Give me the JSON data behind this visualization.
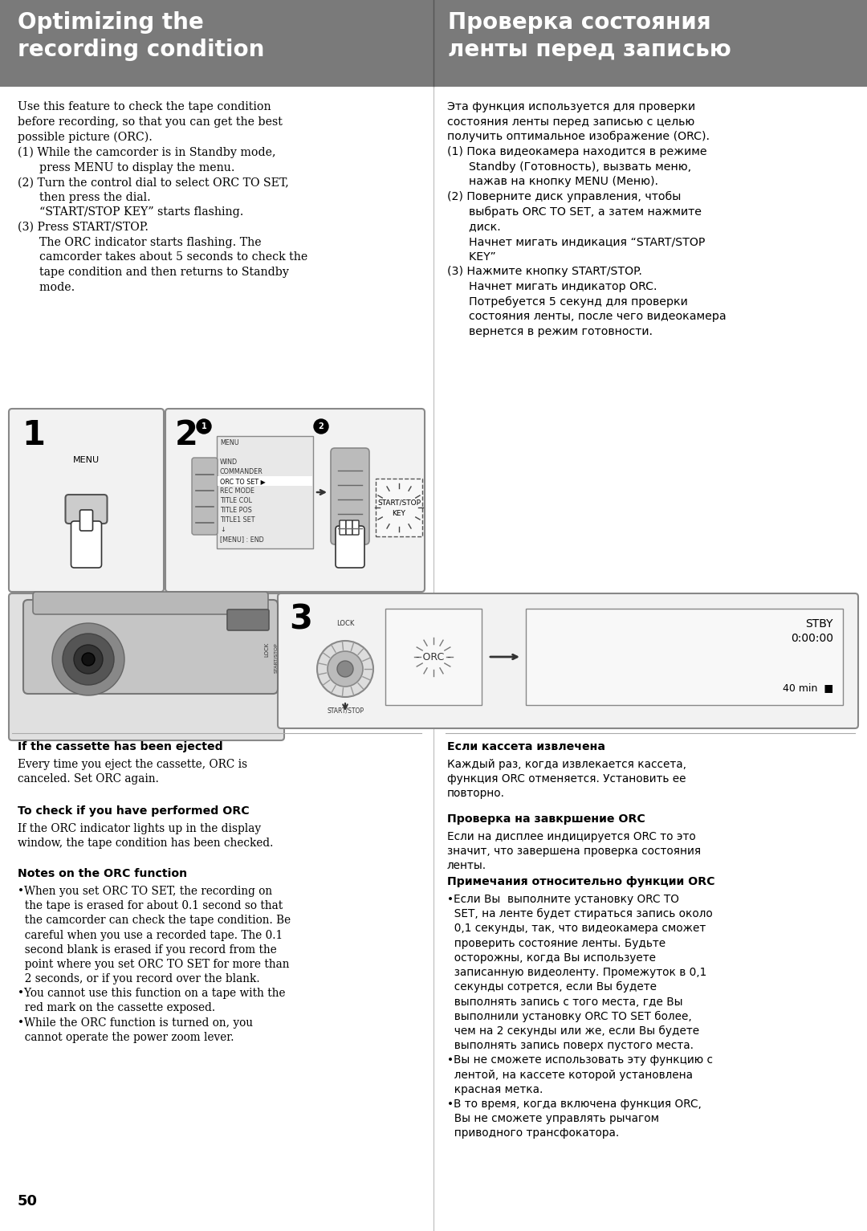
{
  "header_bg": "#7a7a7a",
  "header_text_color": "#ffffff",
  "page_bg": "#ffffff",
  "title_left": "Optimizing the\nrecording condition",
  "title_right": "Проверка состояния\nленты перед записью",
  "page_number": "50",
  "divider_color": "#bbbbbb",
  "box_border_color": "#888888",
  "box_bg": "#f2f2f2"
}
